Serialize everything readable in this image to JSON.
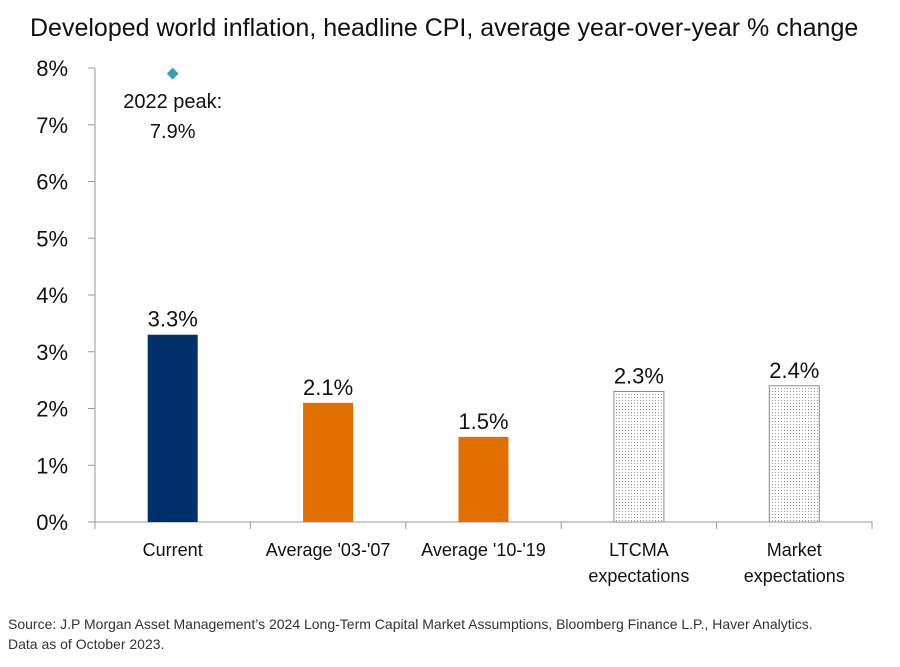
{
  "title": "Developed world inflation, headline CPI, average year-over-year % change",
  "chart_data": {
    "type": "bar",
    "categories": [
      [
        "Current"
      ],
      [
        "Average '03-'07"
      ],
      [
        "Average '10-'19"
      ],
      [
        "LTCMA",
        "expectations"
      ],
      [
        "Market",
        "expectations"
      ]
    ],
    "values": [
      3.3,
      2.1,
      1.5,
      2.3,
      2.4
    ],
    "value_labels": [
      "3.3%",
      "2.1%",
      "1.5%",
      "2.3%",
      "2.4%"
    ],
    "bar_styles": [
      "solid",
      "solid",
      "solid",
      "dotted",
      "dotted"
    ],
    "colors": [
      "#002f6c",
      "#e06f00",
      "#e06f00",
      "#8c8c8c",
      "#8c8c8c"
    ],
    "ylim": [
      0,
      8
    ],
    "yticks": [
      0,
      1,
      2,
      3,
      4,
      5,
      6,
      7,
      8
    ],
    "ytick_labels": [
      "0%",
      "1%",
      "2%",
      "3%",
      "4%",
      "5%",
      "6%",
      "7%",
      "8%"
    ],
    "annotation": {
      "category_index": 0,
      "value": 7.9,
      "lines": [
        "2022 peak:",
        "7.9%"
      ],
      "marker": "diamond",
      "color": "#3a9fb6"
    },
    "grid": false,
    "legend": "none"
  },
  "source_lines": [
    "Source: J.P Morgan Asset Management’s 2024 Long-Term Capital Market Assumptions, Bloomberg Finance L.P., Haver Analytics.",
    "Data as of October 2023."
  ]
}
